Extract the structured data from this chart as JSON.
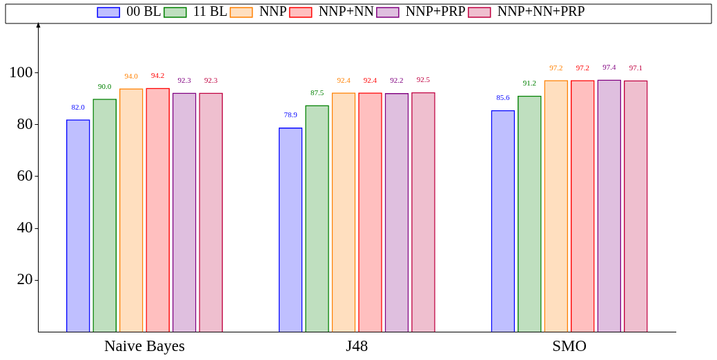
{
  "chart_data": {
    "type": "bar",
    "categories": [
      "Naive Bayes",
      "J48",
      "SMO"
    ],
    "series": [
      {
        "name": "00 BL",
        "color": "#0000ff",
        "values": [
          82.0,
          78.9,
          85.6
        ],
        "value_labels": [
          "82.0",
          "78.9",
          "85.6"
        ]
      },
      {
        "name": "11 BL",
        "color": "#008000",
        "values": [
          90.0,
          87.5,
          91.2
        ],
        "value_labels": [
          "90.0",
          "87.5",
          "91.2"
        ]
      },
      {
        "name": "NNP",
        "color": "#ff8000",
        "values": [
          94.0,
          92.4,
          97.2
        ],
        "value_labels": [
          "94.0",
          "92.4",
          "97.2"
        ]
      },
      {
        "name": "NNP+NN",
        "color": "#ff0000",
        "values": [
          94.2,
          92.4,
          97.2
        ],
        "value_labels": [
          "94.2",
          "92.4",
          "97.2"
        ]
      },
      {
        "name": "NNP+PRP",
        "color": "#800080",
        "values": [
          92.3,
          92.2,
          97.4
        ],
        "value_labels": [
          "92.3",
          "92.2",
          "97.4"
        ]
      },
      {
        "name": "NNP+NN+PRP",
        "color": "#c00040",
        "values": [
          92.3,
          92.5,
          97.1
        ],
        "value_labels": [
          "92.3",
          "92.5",
          "97.1"
        ]
      }
    ],
    "ylim": [
      0,
      118
    ],
    "yticks": [
      20,
      40,
      60,
      80,
      100
    ],
    "grid": false,
    "legend": "top"
  }
}
